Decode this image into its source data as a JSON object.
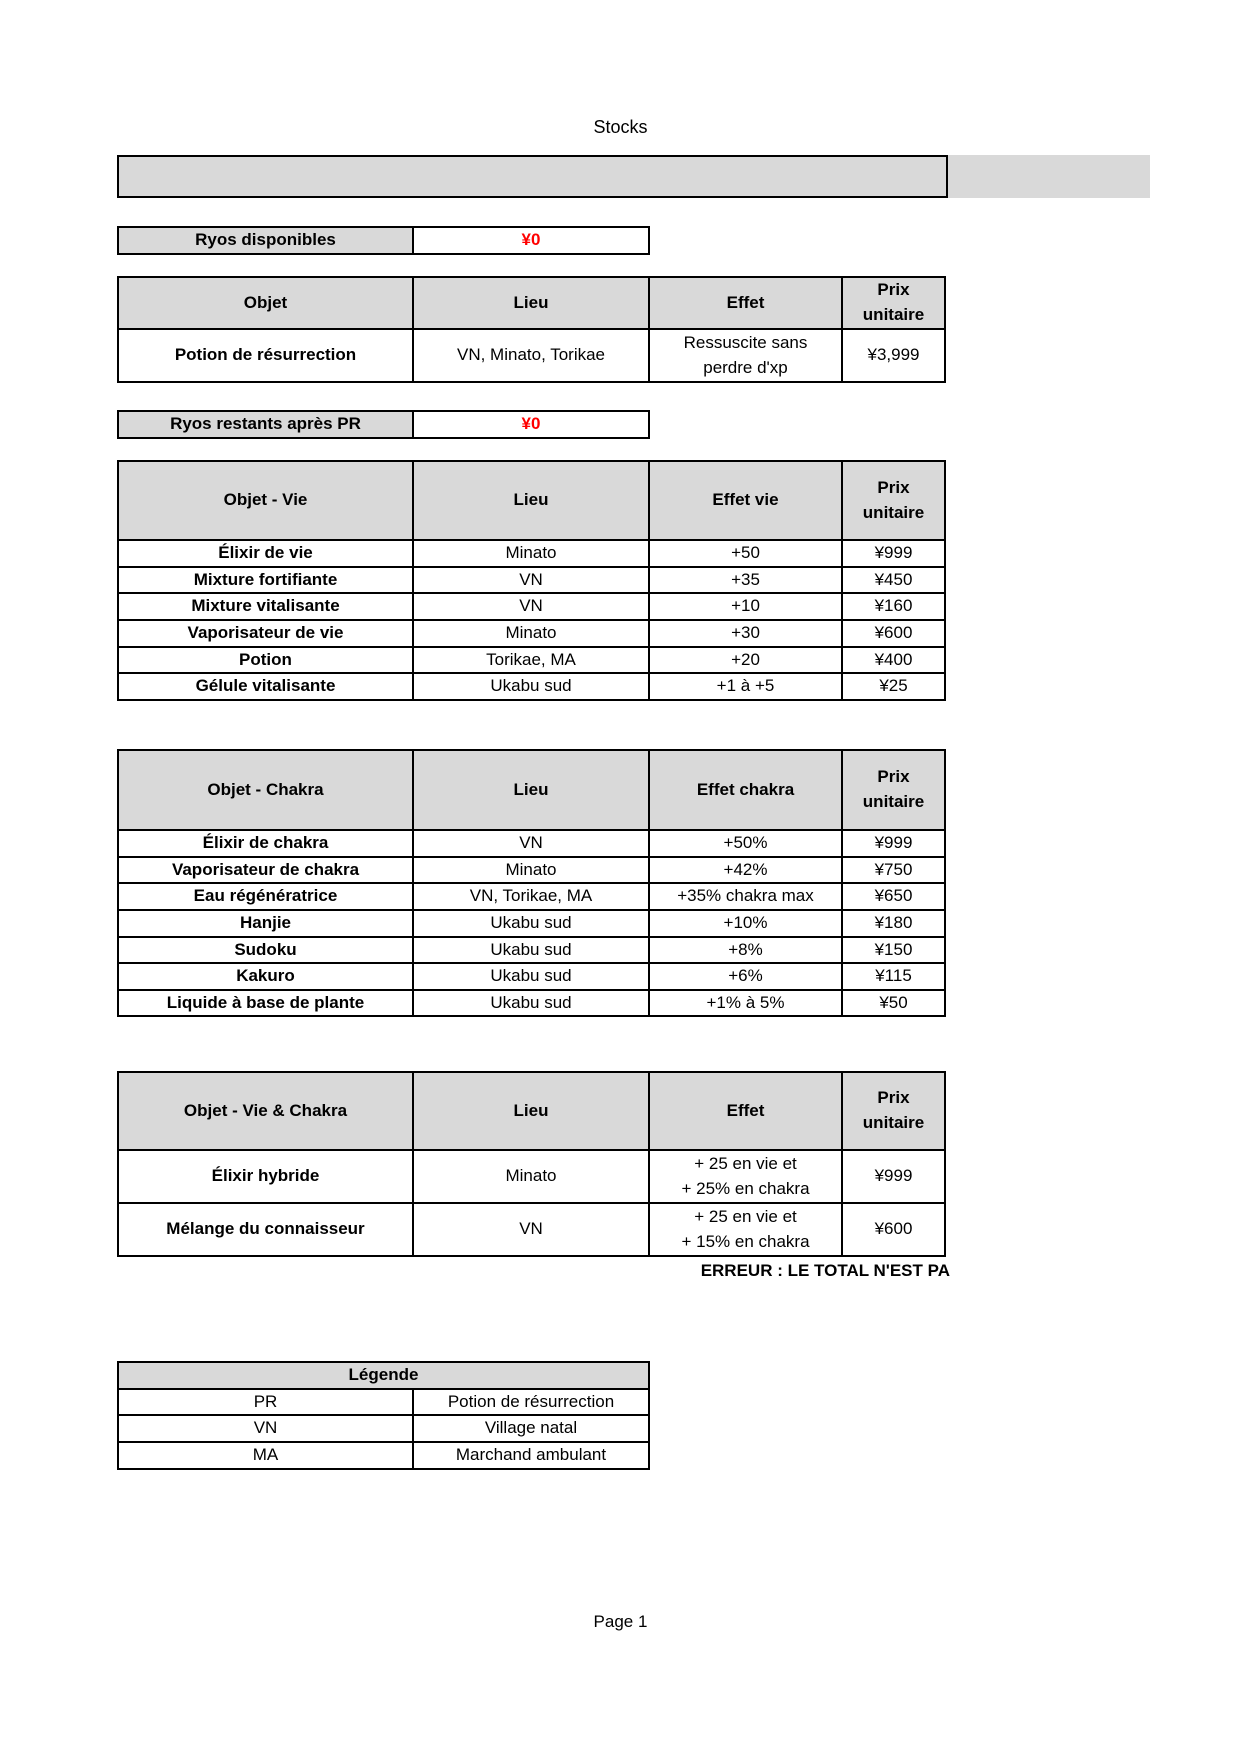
{
  "page": {
    "title": "Stocks",
    "footer": "Page 1"
  },
  "colors": {
    "header_fill": "#d9d9d9",
    "value_red": "#ff0000",
    "border": "#000000"
  },
  "summary": {
    "available": {
      "label": "Ryos disponibles",
      "value": "¥0"
    },
    "remaining": {
      "label": "Ryos restants après PR",
      "value": "¥0"
    }
  },
  "tables": {
    "resurrection": {
      "headers": [
        "Objet",
        "Lieu",
        "Effet",
        "Prix unitaire"
      ],
      "rows": [
        [
          "Potion de résurrection",
          "VN, Minato, Torikae",
          "Ressuscite sans\nperdre d'xp",
          "¥3,999"
        ]
      ]
    },
    "vie": {
      "headers": [
        "Objet - Vie",
        "Lieu",
        "Effet vie",
        "Prix unitaire"
      ],
      "rows": [
        [
          "Élixir de vie",
          "Minato",
          "+50",
          "¥999"
        ],
        [
          "Mixture fortifiante",
          "VN",
          "+35",
          "¥450"
        ],
        [
          "Mixture vitalisante",
          "VN",
          "+10",
          "¥160"
        ],
        [
          "Vaporisateur de vie",
          "Minato",
          "+30",
          "¥600"
        ],
        [
          "Potion",
          "Torikae, MA",
          "+20",
          "¥400"
        ],
        [
          "Gélule vitalisante",
          "Ukabu sud",
          "+1 à +5",
          "¥25"
        ]
      ]
    },
    "chakra": {
      "headers": [
        "Objet - Chakra",
        "Lieu",
        "Effet chakra",
        "Prix unitaire"
      ],
      "rows": [
        [
          "Élixir de chakra",
          "VN",
          "+50%",
          "¥999"
        ],
        [
          "Vaporisateur de chakra",
          "Minato",
          "+42%",
          "¥750"
        ],
        [
          "Eau régénératrice",
          "VN, Torikae, MA",
          "+35% chakra max",
          "¥650"
        ],
        [
          "Hanjie",
          "Ukabu sud",
          "+10%",
          "¥180"
        ],
        [
          "Sudoku",
          "Ukabu sud",
          "+8%",
          "¥150"
        ],
        [
          "Kakuro",
          "Ukabu sud",
          "+6%",
          "¥115"
        ],
        [
          "Liquide à base de plante",
          "Ukabu sud",
          "+1% à 5%",
          "¥50"
        ]
      ]
    },
    "vie_chakra": {
      "headers": [
        "Objet - Vie & Chakra",
        "Lieu",
        "Effet",
        "Prix unitaire"
      ],
      "rows": [
        [
          "Élixir hybride",
          "Minato",
          "+ 25 en vie et\n+ 25% en chakra",
          "¥999"
        ],
        [
          "Mélange du connaisseur",
          "VN",
          "+ 25 en vie et\n+ 15% en chakra",
          "¥600"
        ]
      ]
    },
    "legend": {
      "title": "Légende",
      "rows": [
        [
          "PR",
          "Potion de résurrection"
        ],
        [
          "VN",
          "Village natal"
        ],
        [
          "MA",
          "Marchand ambulant"
        ]
      ]
    }
  },
  "error_message": "ERREUR : LE TOTAL N'EST PA"
}
